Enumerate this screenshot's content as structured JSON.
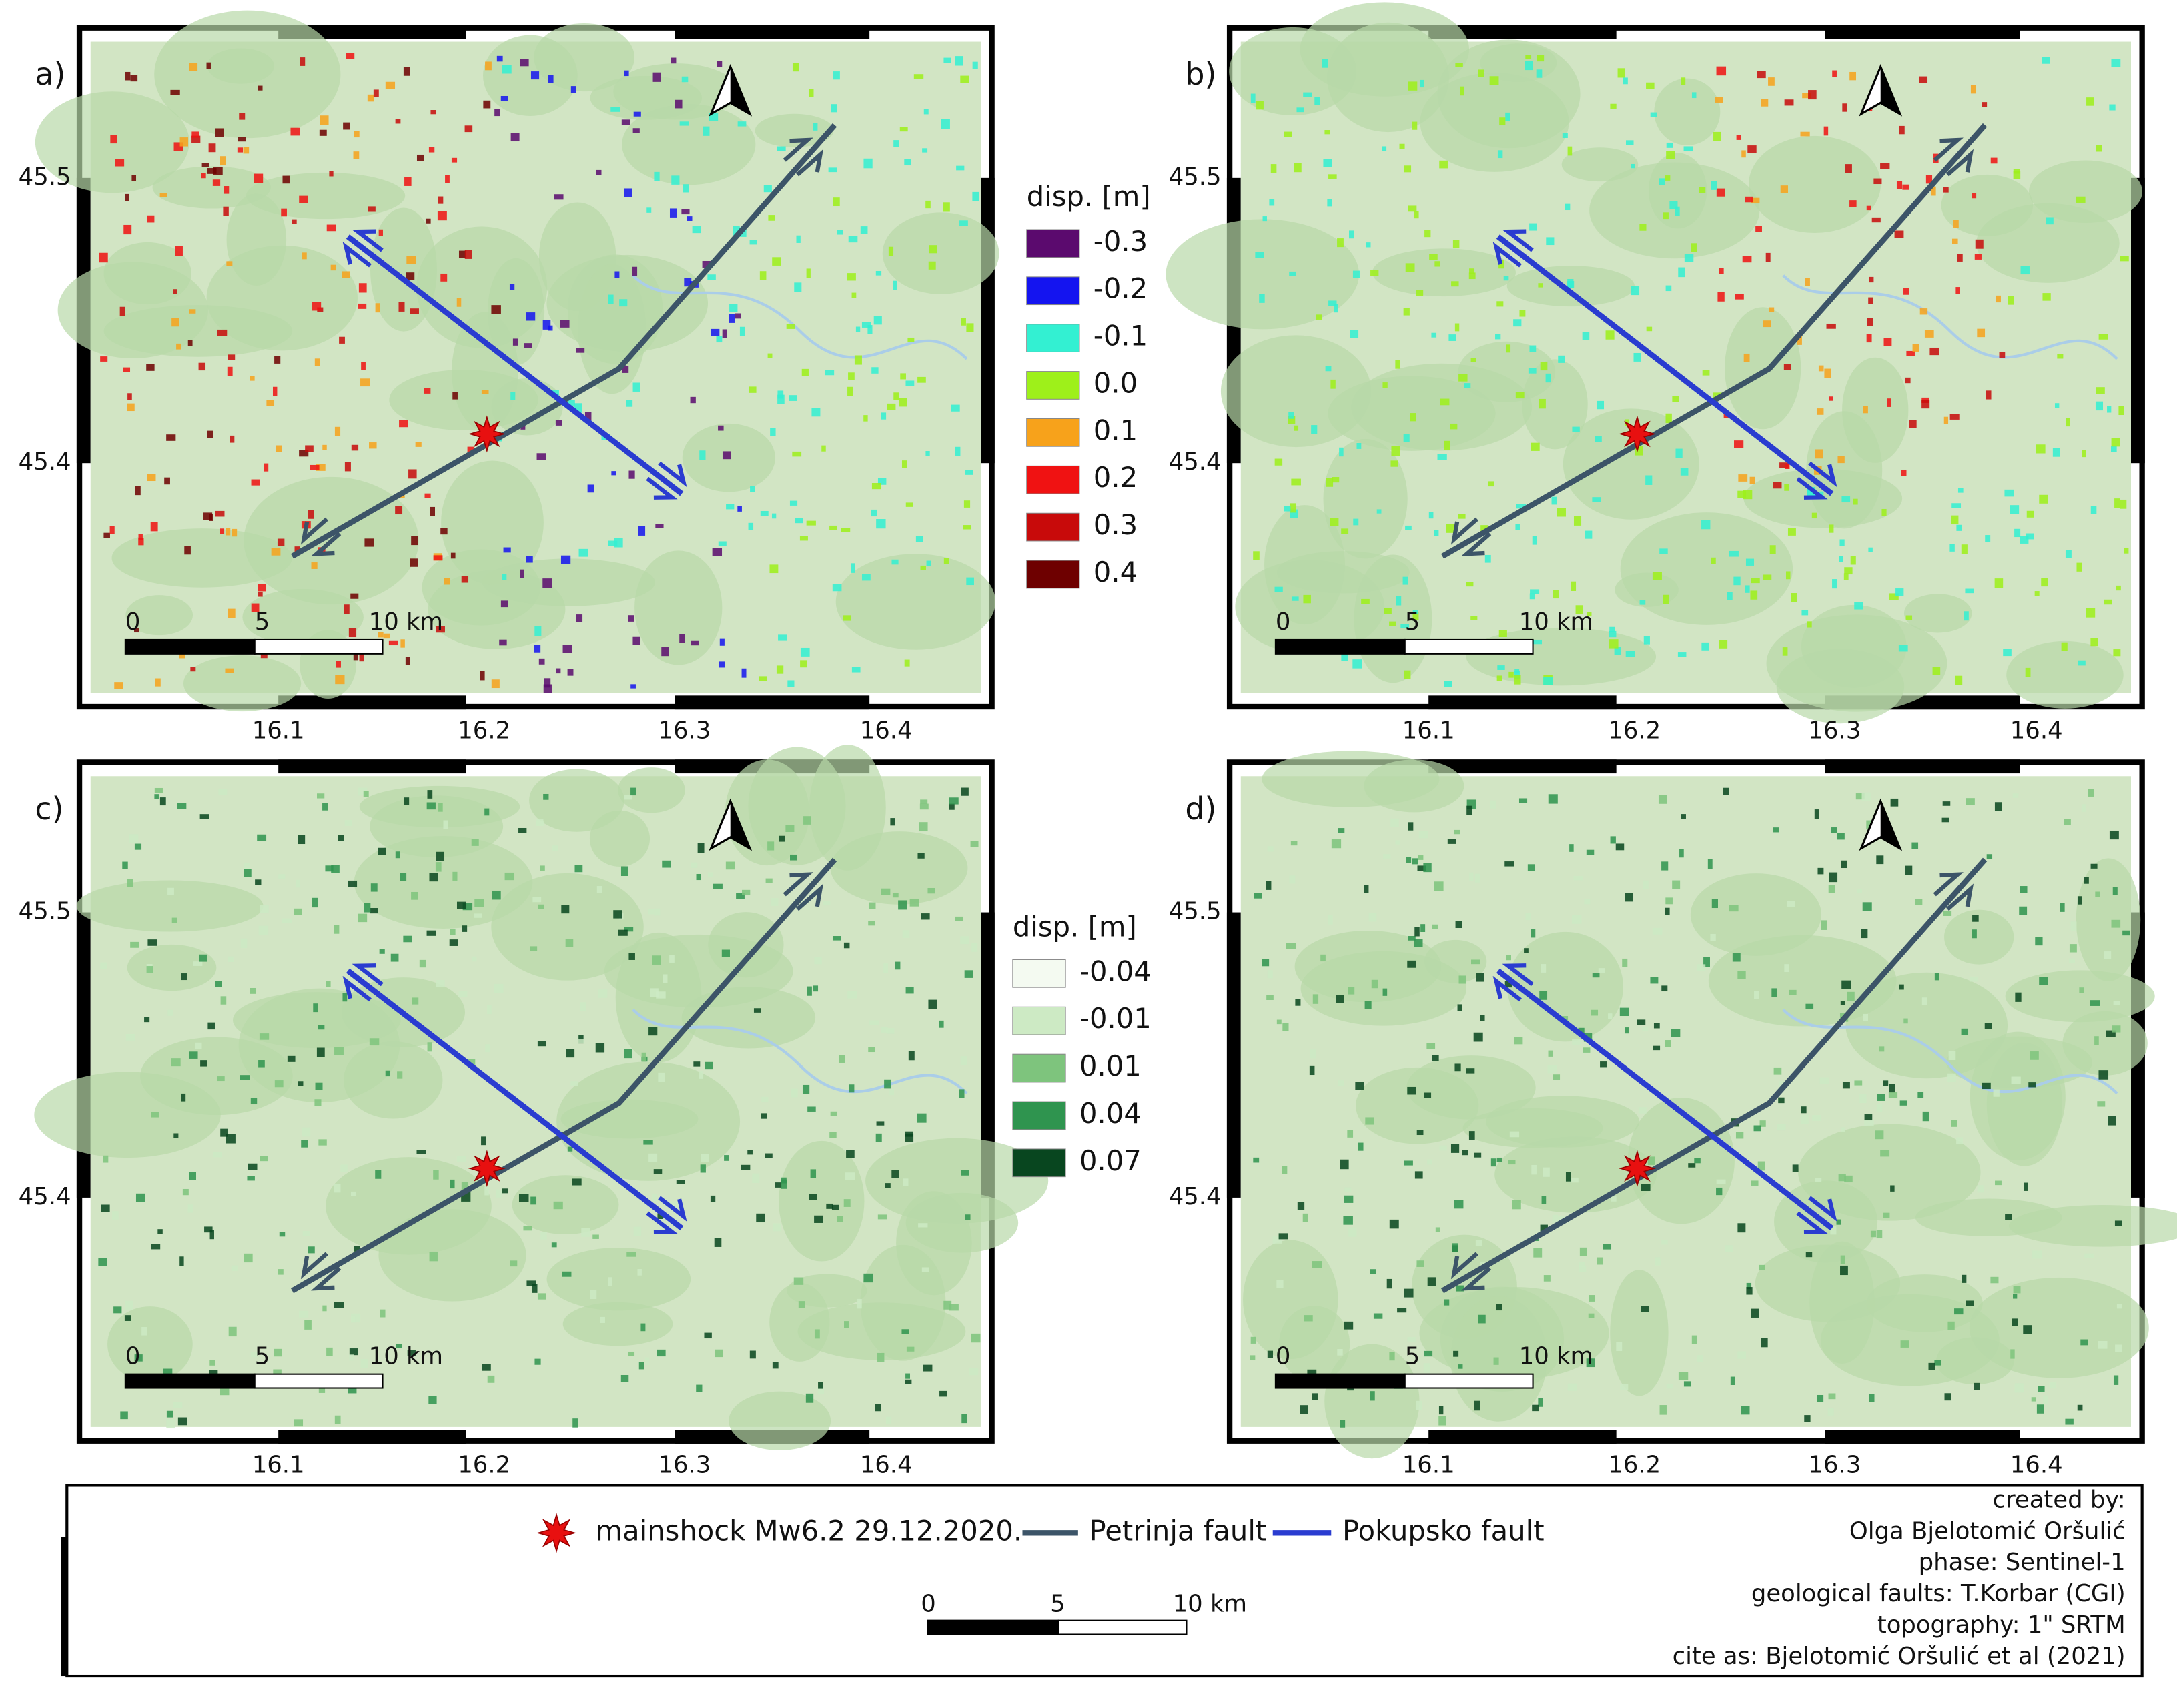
{
  "panels": [
    {
      "label": "a)",
      "lat_ticks": [
        "45.5",
        "45.4"
      ],
      "lon_ticks": [
        "16.1",
        "16.2",
        "16.3",
        "16.4"
      ],
      "scale_labels": [
        "0",
        "5",
        "10 km"
      ]
    },
    {
      "label": "b)",
      "lat_ticks": [
        "45.5",
        "45.4"
      ],
      "lon_ticks": [
        "16.1",
        "16.2",
        "16.3",
        "16.4"
      ],
      "scale_labels": [
        "0",
        "5",
        "10 km"
      ]
    },
    {
      "label": "c)",
      "lat_ticks": [
        "45.5",
        "45.4"
      ],
      "lon_ticks": [
        "16.1",
        "16.2",
        "16.3",
        "16.4"
      ],
      "scale_labels": [
        "0",
        "5",
        "10 km"
      ]
    },
    {
      "label": "d)",
      "lat_ticks": [
        "45.5",
        "45.4"
      ],
      "lon_ticks": [
        "16.1",
        "16.2",
        "16.3",
        "16.4"
      ],
      "scale_labels": [
        "0",
        "5",
        "10 km"
      ]
    }
  ],
  "legend_top": {
    "title": "disp. [m]",
    "items": [
      {
        "label": "-0.3",
        "color": "#5b0a6e"
      },
      {
        "label": "-0.2",
        "color": "#1414f0"
      },
      {
        "label": "-0.1",
        "color": "#33f0d2"
      },
      {
        "label": "0.0",
        "color": "#9ef01a"
      },
      {
        "label": "0.1",
        "color": "#f7a21b"
      },
      {
        "label": "0.2",
        "color": "#f01212"
      },
      {
        "label": "0.3",
        "color": "#c80a0a"
      },
      {
        "label": "0.4",
        "color": "#6e0000"
      }
    ]
  },
  "legend_bottom": {
    "title": "disp. [m]",
    "items": [
      {
        "label": "-0.04",
        "color": "#f4faf1"
      },
      {
        "label": "-0.01",
        "color": "#cdeac4"
      },
      {
        "label": "0.01",
        "color": "#7ec47d"
      },
      {
        "label": "0.04",
        "color": "#2f944f"
      },
      {
        "label": "0.07",
        "color": "#08461f"
      }
    ]
  },
  "map_legend": {
    "items": [
      "mainshock Mw6.2 29.12.2020.",
      "Petrinja fault",
      "Pokupsko fault"
    ],
    "scale_labels": [
      "0",
      "5",
      "10 km"
    ]
  },
  "credits": [
    "created by:",
    "Olga Bjelotomić Oršulić",
    "phase: Sentinel-1",
    "geological faults: T.Korbar (CGI)",
    "topography: 1\" SRTM",
    "cite as: Bjelotomić Oršulić et al (2021)"
  ]
}
